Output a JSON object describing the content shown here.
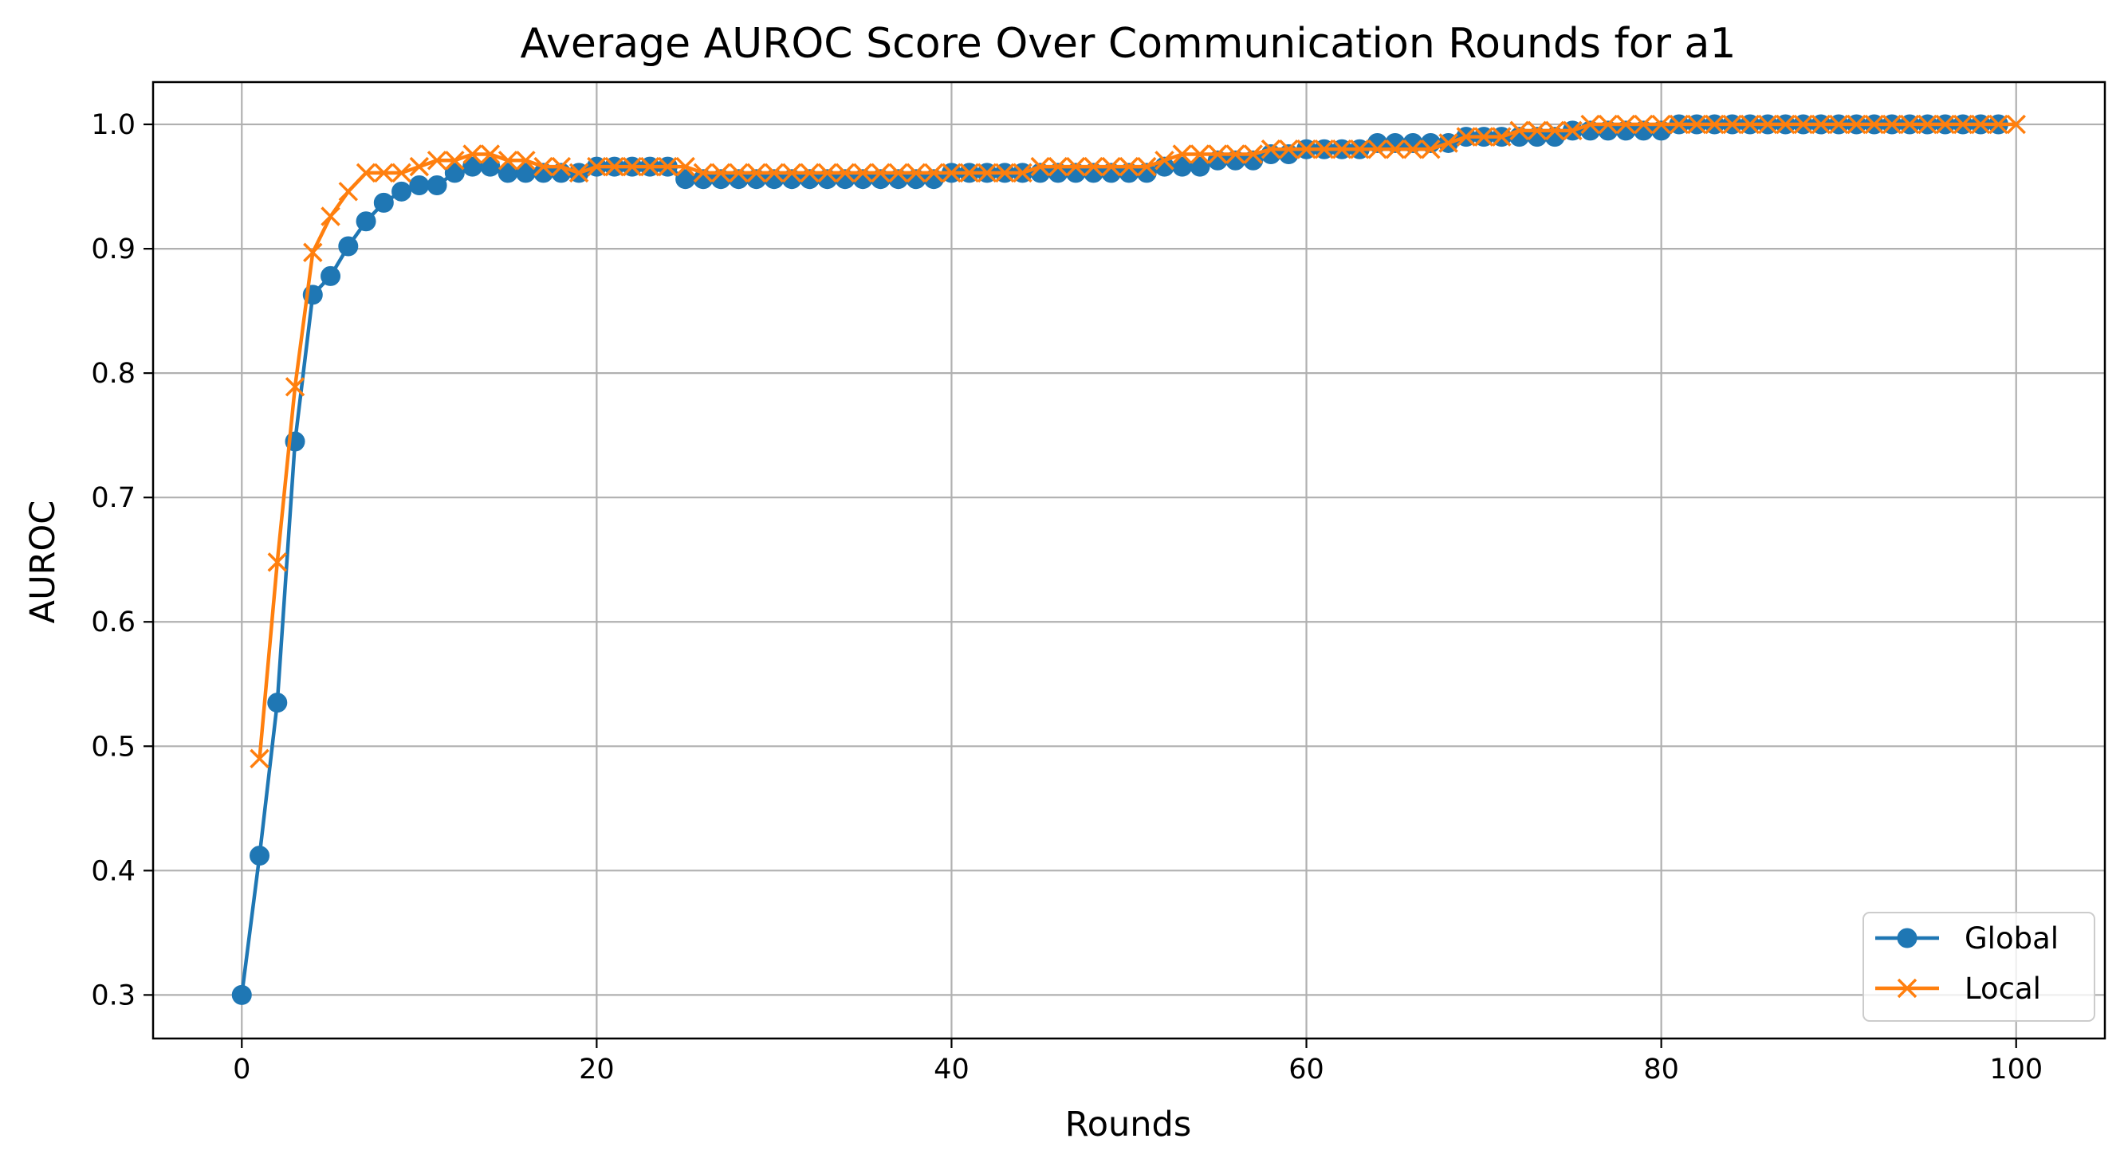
{
  "chart_data": {
    "type": "line",
    "title": "Average AUROC Score Over Communication Rounds for a1",
    "xlabel": "Rounds",
    "ylabel": "AUROC",
    "xlim": [
      -5,
      105
    ],
    "ylim": [
      0.265,
      1.034
    ],
    "x_ticks": [
      0,
      20,
      40,
      60,
      80,
      100
    ],
    "x_tick_labels": [
      "0",
      "20",
      "40",
      "60",
      "80",
      "100"
    ],
    "y_ticks": [
      0.3,
      0.4,
      0.5,
      0.6,
      0.7,
      0.8,
      0.9,
      1.0
    ],
    "y_tick_labels": [
      "0.3",
      "0.4",
      "0.5",
      "0.6",
      "0.7",
      "0.8",
      "0.9",
      "1.0"
    ],
    "grid": true,
    "legend_position": "lower right",
    "series": [
      {
        "name": "Global",
        "color": "#1f77b4",
        "marker": "circle",
        "x": [
          0,
          1,
          2,
          3,
          4,
          5,
          6,
          7,
          8,
          9,
          10,
          11,
          12,
          13,
          14,
          15,
          16,
          17,
          18,
          19,
          20,
          21,
          22,
          23,
          24,
          25,
          26,
          27,
          28,
          29,
          30,
          31,
          32,
          33,
          34,
          35,
          36,
          37,
          38,
          39,
          40,
          41,
          42,
          43,
          44,
          45,
          46,
          47,
          48,
          49,
          50,
          51,
          52,
          53,
          54,
          55,
          56,
          57,
          58,
          59,
          60,
          61,
          62,
          63,
          64,
          65,
          66,
          67,
          68,
          69,
          70,
          71,
          72,
          73,
          74,
          75,
          76,
          77,
          78,
          79,
          80,
          81,
          82,
          83,
          84,
          85,
          86,
          87,
          88,
          89,
          90,
          91,
          92,
          93,
          94,
          95,
          96,
          97,
          98,
          99
        ],
        "values": [
          0.3,
          0.412,
          0.535,
          0.745,
          0.863,
          0.878,
          0.902,
          0.922,
          0.937,
          0.946,
          0.951,
          0.951,
          0.961,
          0.966,
          0.966,
          0.961,
          0.961,
          0.961,
          0.961,
          0.961,
          0.966,
          0.966,
          0.966,
          0.966,
          0.966,
          0.956,
          0.956,
          0.956,
          0.956,
          0.956,
          0.956,
          0.956,
          0.956,
          0.956,
          0.956,
          0.956,
          0.956,
          0.956,
          0.956,
          0.956,
          0.961,
          0.961,
          0.961,
          0.961,
          0.961,
          0.961,
          0.961,
          0.961,
          0.961,
          0.961,
          0.961,
          0.961,
          0.966,
          0.966,
          0.966,
          0.971,
          0.971,
          0.971,
          0.976,
          0.976,
          0.98,
          0.98,
          0.98,
          0.98,
          0.985,
          0.985,
          0.985,
          0.985,
          0.985,
          0.99,
          0.99,
          0.99,
          0.99,
          0.99,
          0.99,
          0.995,
          0.995,
          0.995,
          0.995,
          0.995,
          0.995,
          1.0,
          1.0,
          1.0,
          1.0,
          1.0,
          1.0,
          1.0,
          1.0,
          1.0,
          1.0,
          1.0,
          1.0,
          1.0,
          1.0,
          1.0,
          1.0,
          1.0,
          1.0,
          1.0
        ]
      },
      {
        "name": "Local",
        "color": "#ff7f0e",
        "marker": "x",
        "x": [
          1,
          2,
          3,
          4,
          5,
          6,
          7,
          8,
          9,
          10,
          11,
          12,
          13,
          14,
          15,
          16,
          17,
          18,
          19,
          20,
          21,
          22,
          23,
          24,
          25,
          26,
          27,
          28,
          29,
          30,
          31,
          32,
          33,
          34,
          35,
          36,
          37,
          38,
          39,
          40,
          41,
          42,
          43,
          44,
          45,
          46,
          47,
          48,
          49,
          50,
          51,
          52,
          53,
          54,
          55,
          56,
          57,
          58,
          59,
          60,
          61,
          62,
          63,
          64,
          65,
          66,
          67,
          68,
          69,
          70,
          71,
          72,
          73,
          74,
          75,
          76,
          77,
          78,
          79,
          80,
          81,
          82,
          83,
          84,
          85,
          86,
          87,
          88,
          89,
          90,
          91,
          92,
          93,
          94,
          95,
          96,
          97,
          98,
          99,
          100
        ],
        "values": [
          0.49,
          0.648,
          0.789,
          0.897,
          0.926,
          0.946,
          0.961,
          0.961,
          0.961,
          0.966,
          0.971,
          0.971,
          0.976,
          0.976,
          0.971,
          0.971,
          0.966,
          0.966,
          0.961,
          0.966,
          0.966,
          0.966,
          0.966,
          0.966,
          0.966,
          0.961,
          0.961,
          0.961,
          0.961,
          0.961,
          0.961,
          0.961,
          0.961,
          0.961,
          0.961,
          0.961,
          0.961,
          0.961,
          0.961,
          0.961,
          0.961,
          0.961,
          0.961,
          0.961,
          0.966,
          0.966,
          0.966,
          0.966,
          0.966,
          0.966,
          0.966,
          0.971,
          0.976,
          0.976,
          0.976,
          0.976,
          0.976,
          0.98,
          0.98,
          0.98,
          0.98,
          0.98,
          0.98,
          0.98,
          0.98,
          0.98,
          0.98,
          0.985,
          0.99,
          0.99,
          0.99,
          0.995,
          0.995,
          0.995,
          0.995,
          1.0,
          1.0,
          1.0,
          1.0,
          1.0,
          1.0,
          1.0,
          1.0,
          1.0,
          1.0,
          1.0,
          1.0,
          1.0,
          1.0,
          1.0,
          1.0,
          1.0,
          1.0,
          1.0,
          1.0,
          1.0,
          1.0,
          1.0,
          1.0,
          1.0
        ]
      }
    ]
  }
}
